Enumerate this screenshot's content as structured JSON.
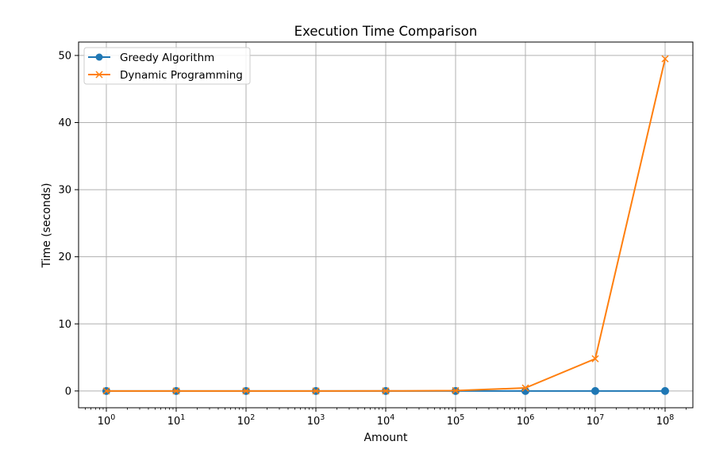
{
  "chart_data": {
    "type": "line",
    "title": "Execution Time Comparison",
    "xlabel": "Amount",
    "ylabel": "Time (seconds)",
    "x_scale": "log",
    "x": [
      1,
      10,
      100,
      1000,
      10000,
      100000,
      1000000,
      10000000,
      100000000
    ],
    "x_tick_labels": [
      {
        "base": "10",
        "exp": "0"
      },
      {
        "base": "10",
        "exp": "1"
      },
      {
        "base": "10",
        "exp": "2"
      },
      {
        "base": "10",
        "exp": "3"
      },
      {
        "base": "10",
        "exp": "4"
      },
      {
        "base": "10",
        "exp": "5"
      },
      {
        "base": "10",
        "exp": "6"
      },
      {
        "base": "10",
        "exp": "7"
      },
      {
        "base": "10",
        "exp": "8"
      }
    ],
    "y_ticks": [
      0,
      10,
      20,
      30,
      40,
      50
    ],
    "y_tick_labels": [
      "0",
      "10",
      "20",
      "30",
      "40",
      "50"
    ],
    "ylim": [
      -2.5,
      52
    ],
    "grid": true,
    "legend_position": "top-left",
    "series": [
      {
        "name": "Greedy Algorithm",
        "color": "#1f77b4",
        "marker": "circle",
        "values": [
          0,
          0,
          0,
          0,
          0,
          0,
          0,
          0,
          0
        ]
      },
      {
        "name": "Dynamic Programming",
        "color": "#ff7f0e",
        "marker": "x",
        "values": [
          0,
          0,
          0,
          0,
          0.005,
          0.05,
          0.45,
          4.8,
          49.5
        ]
      }
    ]
  }
}
